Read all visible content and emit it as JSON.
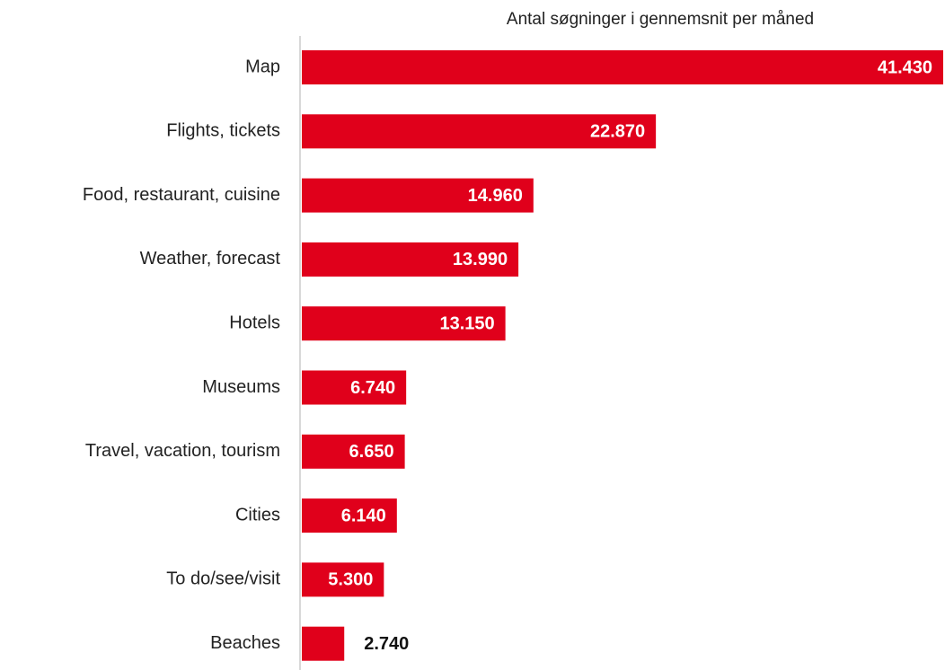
{
  "chart_data": {
    "type": "bar",
    "orientation": "horizontal",
    "title": "Antal søgninger i gennemsnit per måned",
    "categories": [
      "Map",
      "Flights, tickets",
      "Food, restaurant, cuisine",
      "Weather, forecast",
      "Hotels",
      "Museums",
      "Travel, vacation, tourism",
      "Cities",
      "To do/see/visit",
      "Beaches"
    ],
    "values": [
      41430,
      22870,
      14960,
      13990,
      13150,
      6740,
      6650,
      6140,
      5300,
      2740
    ],
    "value_labels": [
      "41.430",
      "22.870",
      "14.960",
      "13.990",
      "13.150",
      "6.740",
      "6.650",
      "6.140",
      "5.300",
      "2.740"
    ],
    "color": "#e0001b"
  }
}
